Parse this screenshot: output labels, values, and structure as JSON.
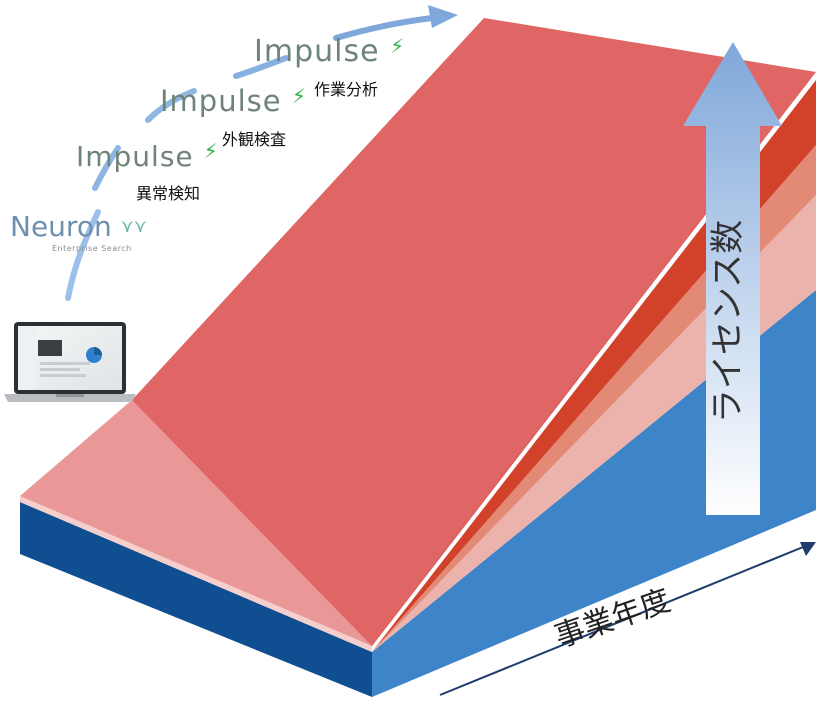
{
  "vertical_axis": {
    "label": "ライセンス数"
  },
  "horizontal_axis": {
    "label": "事業年度"
  },
  "products": [
    {
      "logo": "Neuron",
      "logo_sub": "Enterprise Search",
      "caption": ""
    },
    {
      "logo": "Impulse",
      "caption": "異常検知"
    },
    {
      "logo": "Impulse",
      "caption": "外観検査"
    },
    {
      "logo": "Impulse",
      "caption": "作業分析"
    }
  ],
  "colors": {
    "main_slope": "#e06666",
    "stripe_red": "#d2422b",
    "stripe_orange": "#e38a76",
    "stripe_pink": "#ebb3ab",
    "front_pink": "#e99797",
    "blue_face": "#3d84c8",
    "blue_front": "#0f4f91",
    "arrow_top": "#7fa7da",
    "arrow_bottom": "#ffffff",
    "lightning_green": "#2cb34a"
  },
  "icons": [
    "laptop-icon",
    "lightning-icon",
    "neuron-logo-icon",
    "up-arrow-icon",
    "growth-curve-arrow-icon"
  ]
}
